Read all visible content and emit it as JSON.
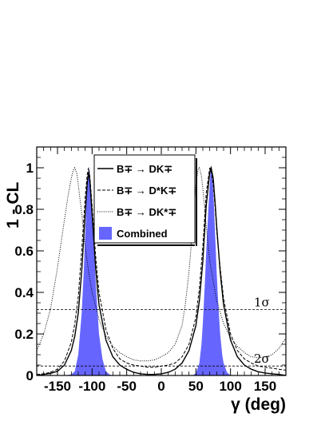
{
  "chart_data": {
    "type": "line",
    "title": "",
    "xlabel": "γ (deg)",
    "ylabel": "1 - CL",
    "xlim": [
      -180,
      180
    ],
    "ylim": [
      0,
      1.1
    ],
    "x_ticks": [
      -150,
      -100,
      -50,
      0,
      50,
      100,
      150
    ],
    "x_tick_labels": [
      "-150",
      "-100",
      "-50",
      "0",
      "50",
      "100",
      "150"
    ],
    "y_ticks": [
      0,
      0.2,
      0.4,
      0.6,
      0.8,
      1
    ],
    "y_tick_labels": [
      "0",
      "0.2",
      "0.4",
      "0.6",
      "0.8",
      "1"
    ],
    "grid": false,
    "legend_position": "top-center",
    "series": [
      {
        "name": "B∓ → DK∓",
        "style": "solid",
        "color": "#000000",
        "x": [
          -180,
          -170,
          -160,
          -150,
          -140,
          -130,
          -125,
          -120,
          -115,
          -110,
          -107,
          -105,
          -103,
          -100,
          -95,
          -90,
          -80,
          -70,
          -60,
          -50,
          -40,
          -30,
          -20,
          -10,
          0,
          10,
          20,
          30,
          40,
          50,
          55,
          60,
          65,
          70,
          72,
          75,
          78,
          80,
          85,
          90,
          100,
          110,
          120,
          130,
          140,
          150,
          160,
          170,
          180
        ],
        "values": [
          0.0,
          0.005,
          0.01,
          0.02,
          0.05,
          0.12,
          0.19,
          0.3,
          0.5,
          0.78,
          0.93,
          0.98,
          0.93,
          0.78,
          0.52,
          0.34,
          0.17,
          0.09,
          0.05,
          0.03,
          0.015,
          0.008,
          0.005,
          0.005,
          0.008,
          0.015,
          0.03,
          0.06,
          0.12,
          0.24,
          0.36,
          0.55,
          0.82,
          0.98,
          1.0,
          0.95,
          0.82,
          0.72,
          0.5,
          0.34,
          0.17,
          0.09,
          0.05,
          0.03,
          0.018,
          0.012,
          0.008,
          0.005,
          0.0
        ]
      },
      {
        "name": "B∓ → D*K∓",
        "style": "dashed",
        "color": "#000000",
        "x": [
          -180,
          -170,
          -160,
          -150,
          -140,
          -130,
          -125,
          -120,
          -115,
          -110,
          -107,
          -105,
          -103,
          -100,
          -95,
          -90,
          -80,
          -70,
          -60,
          -50,
          -40,
          -30,
          -20,
          -10,
          0,
          10,
          20,
          30,
          40,
          50,
          55,
          60,
          65,
          70,
          72,
          75,
          78,
          80,
          85,
          90,
          100,
          110,
          120,
          130,
          140,
          150,
          160,
          170,
          180
        ],
        "values": [
          0.005,
          0.008,
          0.015,
          0.03,
          0.07,
          0.16,
          0.25,
          0.38,
          0.6,
          0.86,
          0.97,
          1.0,
          0.95,
          0.82,
          0.58,
          0.4,
          0.22,
          0.13,
          0.08,
          0.06,
          0.05,
          0.045,
          0.04,
          0.04,
          0.045,
          0.05,
          0.06,
          0.09,
          0.15,
          0.28,
          0.42,
          0.62,
          0.88,
          1.0,
          0.98,
          0.92,
          0.8,
          0.7,
          0.52,
          0.37,
          0.2,
          0.12,
          0.08,
          0.06,
          0.045,
          0.04,
          0.035,
          0.03,
          0.025
        ]
      },
      {
        "name": "B∓ → DK*∓",
        "style": "dotted",
        "color": "#000000",
        "x": [
          -180,
          -170,
          -160,
          -150,
          -140,
          -135,
          -130,
          -127,
          -125,
          -122,
          -120,
          -115,
          -110,
          -105,
          -100,
          -90,
          -80,
          -70,
          -60,
          -50,
          -40,
          -30,
          -20,
          -10,
          0,
          10,
          20,
          30,
          35,
          40,
          45,
          50,
          53,
          55,
          58,
          60,
          65,
          70,
          80,
          90,
          100,
          110,
          120,
          130,
          140,
          150,
          160,
          170,
          180
        ],
        "values": [
          0.12,
          0.2,
          0.32,
          0.52,
          0.75,
          0.86,
          0.95,
          0.99,
          1.0,
          0.97,
          0.92,
          0.78,
          0.62,
          0.5,
          0.4,
          0.27,
          0.19,
          0.14,
          0.11,
          0.09,
          0.075,
          0.07,
          0.07,
          0.075,
          0.09,
          0.11,
          0.15,
          0.24,
          0.35,
          0.5,
          0.7,
          0.92,
          0.99,
          1.0,
          0.96,
          0.9,
          0.72,
          0.55,
          0.36,
          0.25,
          0.18,
          0.14,
          0.11,
          0.09,
          0.085,
          0.09,
          0.1,
          0.13,
          0.18
        ]
      },
      {
        "name": "Combined",
        "style": "filled",
        "color": "#6666ff",
        "x": [
          -140,
          -130,
          -125,
          -120,
          -115,
          -112,
          -110,
          -108,
          -106,
          -105,
          -103,
          -100,
          -97,
          -95,
          -92,
          -90,
          -85,
          -80,
          -75,
          -70,
          45,
          50,
          55,
          58,
          60,
          63,
          65,
          68,
          70,
          71,
          72,
          74,
          76,
          78,
          80,
          82,
          85,
          88,
          90,
          95,
          100
        ],
        "values": [
          0.0,
          0.005,
          0.02,
          0.1,
          0.3,
          0.5,
          0.68,
          0.85,
          0.96,
          1.0,
          0.97,
          0.8,
          0.6,
          0.46,
          0.3,
          0.2,
          0.08,
          0.02,
          0.005,
          0.0,
          0.0,
          0.01,
          0.06,
          0.15,
          0.25,
          0.45,
          0.6,
          0.8,
          0.92,
          0.98,
          1.0,
          0.95,
          0.82,
          0.66,
          0.5,
          0.36,
          0.2,
          0.1,
          0.06,
          0.015,
          0.0
        ]
      }
    ],
    "reference_lines": [
      {
        "y": 0.3173,
        "label": "1σ",
        "style": "dashed"
      },
      {
        "y": 0.0455,
        "label": "2σ",
        "style": "dashed"
      }
    ]
  }
}
